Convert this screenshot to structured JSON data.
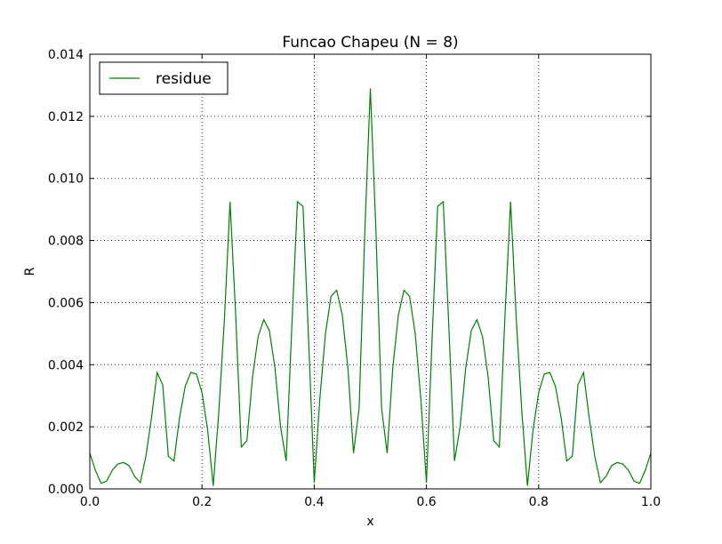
{
  "chart_data": {
    "type": "line",
    "title": "Funcao Chapeu (N = 8)",
    "xlabel": "x",
    "ylabel": "R",
    "xlim": [
      0.0,
      1.0
    ],
    "ylim": [
      0.0,
      0.014
    ],
    "xticks": [
      "0.0",
      "0.2",
      "0.4",
      "0.6",
      "0.8",
      "1.0"
    ],
    "yticks": [
      "0.000",
      "0.002",
      "0.004",
      "0.006",
      "0.008",
      "0.010",
      "0.012",
      "0.014"
    ],
    "grid": true,
    "legend": "upper-left",
    "series": [
      {
        "name": "residue",
        "color": "#008000",
        "x": [
          0.0,
          0.01,
          0.02,
          0.03,
          0.04,
          0.05,
          0.06,
          0.07,
          0.08,
          0.09,
          0.1,
          0.11,
          0.12,
          0.13,
          0.14,
          0.15,
          0.16,
          0.17,
          0.18,
          0.19,
          0.2,
          0.21,
          0.22,
          0.23,
          0.24,
          0.25,
          0.26,
          0.27,
          0.28,
          0.29,
          0.3,
          0.31,
          0.32,
          0.33,
          0.34,
          0.35,
          0.36,
          0.37,
          0.38,
          0.39,
          0.4,
          0.41,
          0.42,
          0.43,
          0.44,
          0.45,
          0.46,
          0.47,
          0.48,
          0.49,
          0.5,
          0.51,
          0.52,
          0.53,
          0.54,
          0.55,
          0.56,
          0.57,
          0.58,
          0.59,
          0.6,
          0.61,
          0.62,
          0.63,
          0.64,
          0.65,
          0.66,
          0.67,
          0.68,
          0.69,
          0.7,
          0.71,
          0.72,
          0.73,
          0.74,
          0.75,
          0.76,
          0.77,
          0.78,
          0.79,
          0.8,
          0.81,
          0.82,
          0.83,
          0.84,
          0.85,
          0.86,
          0.87,
          0.88,
          0.89,
          0.9,
          0.91,
          0.92,
          0.93,
          0.94,
          0.95,
          0.96,
          0.97,
          0.98,
          0.99,
          1.0
        ],
        "y": [
          0.00115,
          0.0006,
          0.00018,
          0.00025,
          0.0006,
          0.0008,
          0.00085,
          0.00075,
          0.0004,
          0.0002,
          0.00105,
          0.0023,
          0.00375,
          0.00335,
          0.00105,
          0.0009,
          0.0023,
          0.0033,
          0.00375,
          0.0037,
          0.0031,
          0.0019,
          0.0001,
          0.0025,
          0.0055,
          0.00925,
          0.0056,
          0.00135,
          0.00155,
          0.0036,
          0.0049,
          0.00545,
          0.0051,
          0.0039,
          0.002,
          0.0009,
          0.0052,
          0.00925,
          0.0091,
          0.0048,
          0.0002,
          0.0029,
          0.005,
          0.0062,
          0.0064,
          0.0056,
          0.0039,
          0.00115,
          0.0026,
          0.0082,
          0.0129,
          0.0083,
          0.0026,
          0.00115,
          0.0039,
          0.0056,
          0.0064,
          0.0062,
          0.005,
          0.0029,
          0.0002,
          0.0048,
          0.0091,
          0.00925,
          0.0052,
          0.0009,
          0.002,
          0.0039,
          0.0051,
          0.00545,
          0.0049,
          0.0036,
          0.00155,
          0.00135,
          0.0056,
          0.00925,
          0.0055,
          0.0025,
          0.0001,
          0.0019,
          0.0031,
          0.0037,
          0.00375,
          0.0033,
          0.0023,
          0.0009,
          0.00105,
          0.00335,
          0.00375,
          0.0023,
          0.00105,
          0.0002,
          0.0004,
          0.00075,
          0.00085,
          0.0008,
          0.0006,
          0.00025,
          0.00018,
          0.0006,
          0.00115
        ]
      }
    ]
  }
}
